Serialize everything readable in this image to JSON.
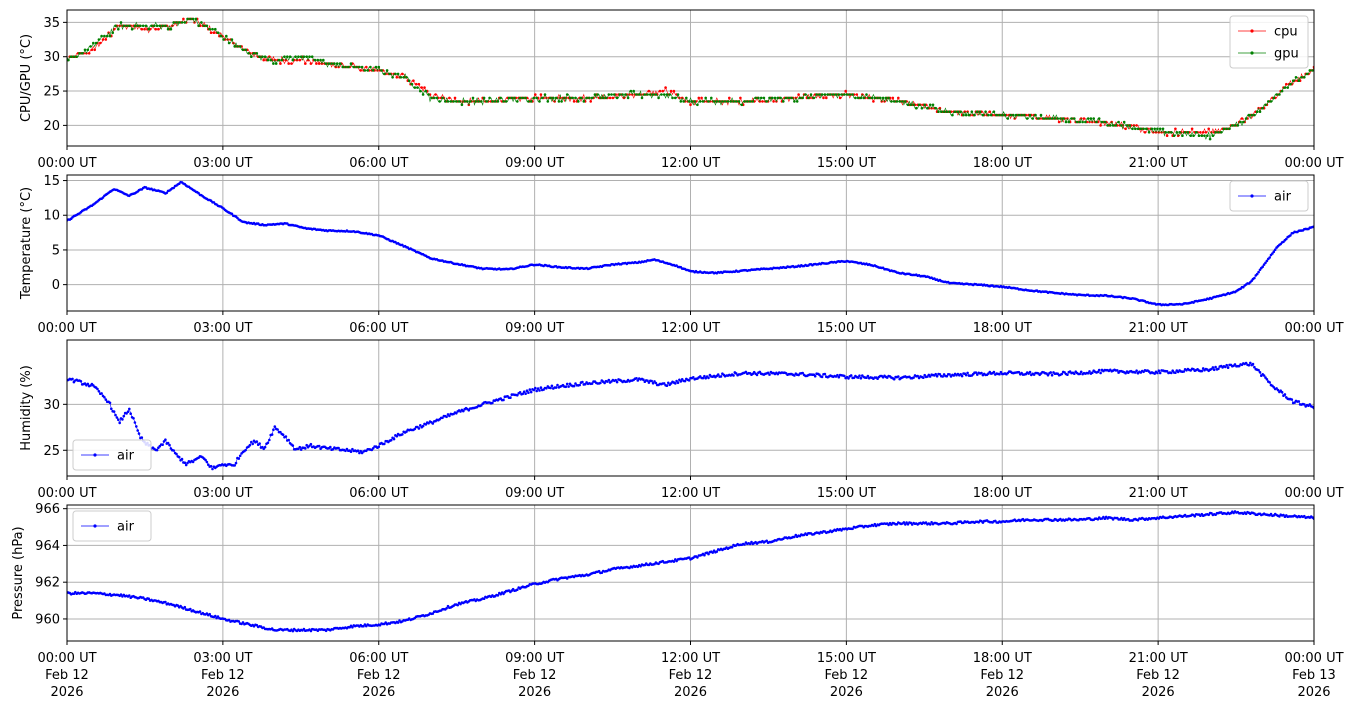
{
  "figure": {
    "x_tick_labels": [
      "00:00 UT",
      "03:00 UT",
      "06:00 UT",
      "09:00 UT",
      "12:00 UT",
      "15:00 UT",
      "18:00 UT",
      "21:00 UT",
      "00:00 UT"
    ],
    "bottom_date_lines": [
      [
        "Feb 12",
        "2026"
      ],
      [
        "Feb 12",
        "2026"
      ],
      [
        "Feb 12",
        "2026"
      ],
      [
        "Feb 12",
        "2026"
      ],
      [
        "Feb 12",
        "2026"
      ],
      [
        "Feb 12",
        "2026"
      ],
      [
        "Feb 12",
        "2026"
      ],
      [
        "Feb 12",
        "2026"
      ],
      [
        "Feb 13",
        "2026"
      ]
    ],
    "colors": {
      "cpu": "#ff0000",
      "gpu": "#008000",
      "air": "#0000ff",
      "grid": "#b0b0b0"
    }
  },
  "chart_data": [
    {
      "type": "scatter",
      "ylabel": "CPU/GPU (°C)",
      "xlim": [
        "2026-02-12 00:00",
        "2026-02-13 00:00"
      ],
      "ylim": [
        17.0,
        36.8
      ],
      "yticks": [
        20,
        25,
        30,
        35
      ],
      "grid": true,
      "legend": "top-right",
      "series": [
        {
          "name": "cpu",
          "x_hours": [
            0,
            0.5,
            1,
            1.5,
            2,
            2.4,
            3,
            3.5,
            4,
            4.5,
            5,
            5.5,
            6,
            6.5,
            7,
            7.5,
            8,
            9,
            10,
            11,
            11.5,
            12,
            13,
            14,
            15,
            16,
            17,
            18,
            19,
            20,
            21,
            22,
            22.5,
            23,
            23.5,
            24
          ],
          "values": [
            29.5,
            31,
            34.5,
            34,
            34.5,
            35.5,
            33,
            30.5,
            29.5,
            29.5,
            29,
            28.5,
            28,
            27,
            24.5,
            23.5,
            23.5,
            24,
            24,
            24.5,
            25,
            23.5,
            23.5,
            24,
            24.5,
            23.5,
            22,
            21.5,
            21,
            20.5,
            19,
            19,
            20,
            22.5,
            26,
            28
          ]
        },
        {
          "name": "gpu",
          "x_hours": [
            0,
            0.5,
            1,
            1.5,
            2,
            2.4,
            3,
            3.5,
            4,
            4.5,
            5,
            5.5,
            6,
            6.5,
            7,
            7.5,
            8,
            9,
            10,
            11,
            11.5,
            12,
            13,
            14,
            15,
            16,
            17,
            18,
            19,
            20,
            21,
            22,
            22.5,
            23,
            23.5,
            24
          ],
          "values": [
            29.5,
            31.5,
            34.5,
            34.5,
            34.5,
            35.5,
            33,
            30.5,
            29.5,
            30,
            29,
            28.5,
            28,
            27,
            24,
            23.5,
            23.5,
            24,
            24,
            24.5,
            24.5,
            23.5,
            23.5,
            24,
            24.5,
            23.5,
            22,
            21.5,
            21,
            20.5,
            19,
            18.5,
            20,
            22.5,
            26,
            28
          ]
        }
      ]
    },
    {
      "type": "line",
      "ylabel": "Temperature (°C)",
      "xlim": [
        "2026-02-12 00:00",
        "2026-02-13 00:00"
      ],
      "ylim": [
        -3.8,
        15.8
      ],
      "yticks": [
        0,
        5,
        10,
        15
      ],
      "grid": true,
      "legend": "top-right",
      "series": [
        {
          "name": "air",
          "x_hours": [
            0,
            0.5,
            0.9,
            1.2,
            1.5,
            1.9,
            2.2,
            2.6,
            3,
            3.4,
            3.8,
            4.2,
            4.6,
            5,
            5.5,
            6,
            6.5,
            7,
            7.5,
            8,
            8.5,
            9,
            9.5,
            10,
            10.5,
            11,
            11.3,
            11.7,
            12,
            12.5,
            13,
            13.5,
            14,
            14.5,
            15,
            15.5,
            16,
            16.5,
            17,
            17.5,
            18,
            18.5,
            19,
            19.5,
            20,
            20.5,
            21,
            21.5,
            22,
            22.5,
            22.8,
            23,
            23.3,
            23.6,
            24
          ],
          "values": [
            9.2,
            11.5,
            13.8,
            12.8,
            14,
            13.2,
            14.8,
            12.8,
            11,
            9,
            8.6,
            8.8,
            8.1,
            7.8,
            7.7,
            7.1,
            5.5,
            3.8,
            3,
            2.3,
            2.2,
            2.9,
            2.5,
            2.3,
            2.9,
            3.2,
            3.6,
            2.8,
            1.9,
            1.7,
            2.0,
            2.3,
            2.6,
            3,
            3.4,
            2.8,
            1.7,
            1.2,
            0.2,
            0,
            -0.3,
            -0.8,
            -1.2,
            -1.5,
            -1.6,
            -2.0,
            -2.9,
            -2.8,
            -2.0,
            -1.0,
            0.5,
            2.5,
            5.5,
            7.5,
            8.3
          ]
        }
      ]
    },
    {
      "type": "scatter",
      "ylabel": "Humidity (%)",
      "xlim": [
        "2026-02-12 00:00",
        "2026-02-13 00:00"
      ],
      "ylim": [
        22.2,
        37.0
      ],
      "yticks": [
        25,
        30
      ],
      "grid": true,
      "legend": "bottom-left",
      "series": [
        {
          "name": "air",
          "x_hours": [
            0,
            0.5,
            0.8,
            1.0,
            1.2,
            1.4,
            1.5,
            1.7,
            1.9,
            2.1,
            2.3,
            2.6,
            2.8,
            3.0,
            3.2,
            3.4,
            3.6,
            3.8,
            4.0,
            4.2,
            4.4,
            4.7,
            5.0,
            5.4,
            5.7,
            6.0,
            6.5,
            7.0,
            7.5,
            8.0,
            8.5,
            9.0,
            9.5,
            10.0,
            11.0,
            11.5,
            12.0,
            13.0,
            14.0,
            15.0,
            16.0,
            17.0,
            18.0,
            19.0,
            20.0,
            21.0,
            22.0,
            22.5,
            22.8,
            23.2,
            23.6,
            24.0
          ],
          "values": [
            32.8,
            32,
            30.3,
            28,
            29.5,
            26.5,
            25.8,
            25,
            26,
            24.5,
            23.5,
            24.3,
            23.0,
            23.5,
            23.3,
            25.0,
            26.0,
            25.2,
            27.5,
            26.5,
            25.1,
            25.5,
            25.2,
            25.0,
            24.8,
            25.5,
            27,
            28,
            29.1,
            30,
            30.8,
            31.6,
            32.0,
            32.3,
            32.7,
            32.1,
            32.8,
            33.4,
            33.3,
            33.0,
            32.9,
            33.2,
            33.4,
            33.3,
            33.6,
            33.5,
            33.8,
            34.3,
            34.4,
            32.0,
            30.3,
            29.7
          ]
        }
      ]
    },
    {
      "type": "line",
      "ylabel": "Pressure (hPa)",
      "xlim": [
        "2026-02-12 00:00",
        "2026-02-13 00:00"
      ],
      "ylim": [
        958.8,
        966.2
      ],
      "yticks": [
        960,
        962,
        964,
        966
      ],
      "grid": true,
      "legend": "top-left",
      "series": [
        {
          "name": "air",
          "x_hours": [
            0,
            0.5,
            1,
            1.5,
            2,
            2.5,
            3,
            3.5,
            4,
            4.5,
            5,
            5.5,
            6,
            6.5,
            7,
            7.5,
            8,
            8.5,
            9,
            9.5,
            10,
            10.5,
            11,
            11.5,
            12,
            12.5,
            13,
            13.5,
            14,
            14.5,
            15,
            15.5,
            16,
            16.5,
            17,
            17.5,
            18,
            18.5,
            19,
            19.5,
            20,
            20.5,
            21,
            21.5,
            22,
            22.5,
            23,
            23.5,
            24
          ],
          "values": [
            961.4,
            961.4,
            961.3,
            961.1,
            960.8,
            960.4,
            960.0,
            959.7,
            959.4,
            959.4,
            959.4,
            959.6,
            959.7,
            959.9,
            960.3,
            960.8,
            961.1,
            961.5,
            961.9,
            962.2,
            962.4,
            962.7,
            962.9,
            963.1,
            963.3,
            963.7,
            964.1,
            964.2,
            964.5,
            964.7,
            964.9,
            965.1,
            965.2,
            965.2,
            965.2,
            965.3,
            965.3,
            965.4,
            965.4,
            965.4,
            965.5,
            965.4,
            965.5,
            965.6,
            965.7,
            965.8,
            965.7,
            965.6,
            965.5
          ]
        }
      ]
    }
  ]
}
